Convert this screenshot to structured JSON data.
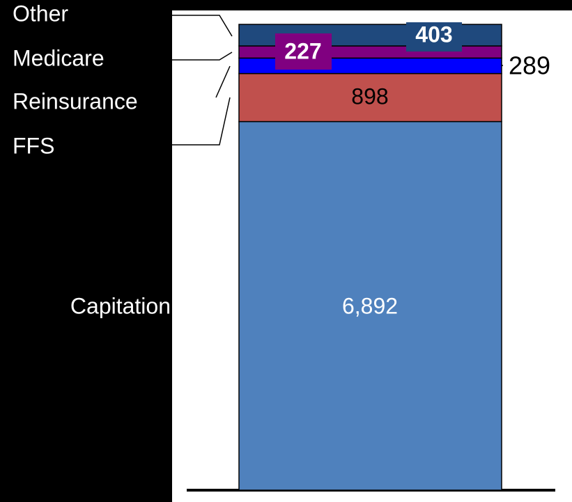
{
  "chart_data": {
    "type": "stacked_bar",
    "categories": [
      "Capitation",
      "FFS",
      "Reinsurance",
      "Medicare",
      "Other"
    ],
    "values": [
      6892,
      898,
      289,
      227,
      403
    ],
    "value_labels": [
      "6,892",
      "898",
      "289",
      "227",
      "403"
    ],
    "colors": [
      "#4f81bd",
      "#c0504d",
      "#0000ff",
      "#800080",
      "#1f497d"
    ]
  }
}
